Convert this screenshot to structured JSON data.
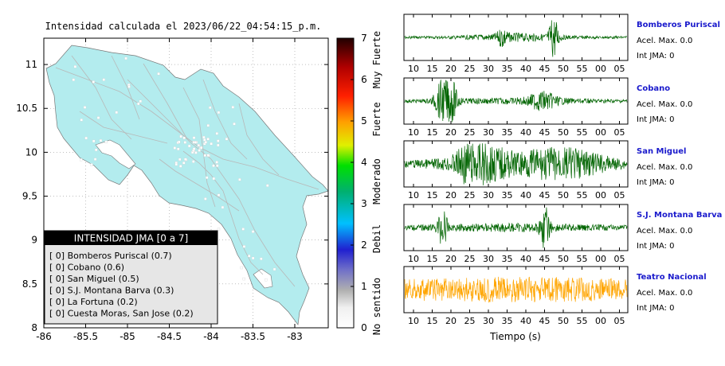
{
  "map": {
    "title": "Intensidad calculada el 2023/06/22_04:54:15_p.m.",
    "xlim": [
      -86,
      -82.6
    ],
    "ylim": [
      8,
      11.3
    ],
    "xticks": [
      "-86",
      "-85.5",
      "-85",
      "-84.5",
      "-84",
      "-83.5",
      "-83"
    ],
    "yticks": [
      "8",
      "8.5",
      "9",
      "9.5",
      "10",
      "10.5",
      "11"
    ],
    "land_color": "#b3ecee",
    "legend": {
      "title": "INTENSIDAD JMA [0 a 7]",
      "items": [
        "[ 0]  Bomberos Puriscal (0.7)",
        "[ 0]  Cobano (0.6)",
        "[ 0]  San Miguel (0.5)",
        "[ 0]  S.J. Montana Barva (0.3)",
        "[ 0]  La Fortuna (0.2)",
        "[ 0]  Cuesta Moras, San Jose (0.2)"
      ]
    }
  },
  "colorbar": {
    "ticks": [
      "0",
      "1",
      "2",
      "3",
      "4",
      "5",
      "6",
      "7"
    ],
    "labels": [
      "No sentido",
      "Debil",
      "Moderado",
      "Fuerte",
      "Muy Fuerte"
    ]
  },
  "waveforms": {
    "xticks": [
      "10",
      "15",
      "20",
      "25",
      "30",
      "35",
      "40",
      "45",
      "50",
      "55",
      "00",
      "05"
    ],
    "xlabel": "Tiempo (s)",
    "stations": [
      {
        "name": "Bomberos Puriscal",
        "acel": "Acel. Max. 0.0",
        "int": "Int JMA: 0",
        "color": "#006400"
      },
      {
        "name": "Cobano",
        "acel": "Acel. Max. 0.0",
        "int": "Int JMA: 0",
        "color": "#006400"
      },
      {
        "name": "San Miguel",
        "acel": "Acel. Max. 0.0",
        "int": "Int JMA: 0",
        "color": "#006400"
      },
      {
        "name": "S.J. Montana Barva",
        "acel": "Acel. Max. 0.0",
        "int": "Int JMA: 0",
        "color": "#006400"
      },
      {
        "name": "Teatro Nacional",
        "acel": "Acel. Max. 0.0",
        "int": "Int JMA: 0",
        "color": "#ffa500"
      }
    ]
  },
  "chart_data": {
    "type": "heatmap",
    "title": "Intensidad calculada el 2023/06/22_04:54:15_p.m.",
    "xlim": [
      -86,
      -82.6
    ],
    "ylim": [
      8,
      11.3
    ],
    "colorbar_range": [
      0,
      7
    ],
    "stations": [
      {
        "name": "Bomberos Puriscal",
        "intensity": 0.7,
        "jma": 0
      },
      {
        "name": "Cobano",
        "intensity": 0.6,
        "jma": 0
      },
      {
        "name": "San Miguel",
        "intensity": 0.5,
        "jma": 0
      },
      {
        "name": "S.J. Montana Barva",
        "intensity": 0.3,
        "jma": 0
      },
      {
        "name": "La Fortuna",
        "intensity": 0.2,
        "jma": 0
      },
      {
        "name": "Cuesta Moras, San Jose",
        "intensity": 0.2,
        "jma": 0
      }
    ],
    "waveform_time_ticks": [
      "10",
      "15",
      "20",
      "25",
      "30",
      "35",
      "40",
      "45",
      "50",
      "55",
      "00",
      "05"
    ],
    "waveform_xlabel": "Tiempo (s)"
  }
}
